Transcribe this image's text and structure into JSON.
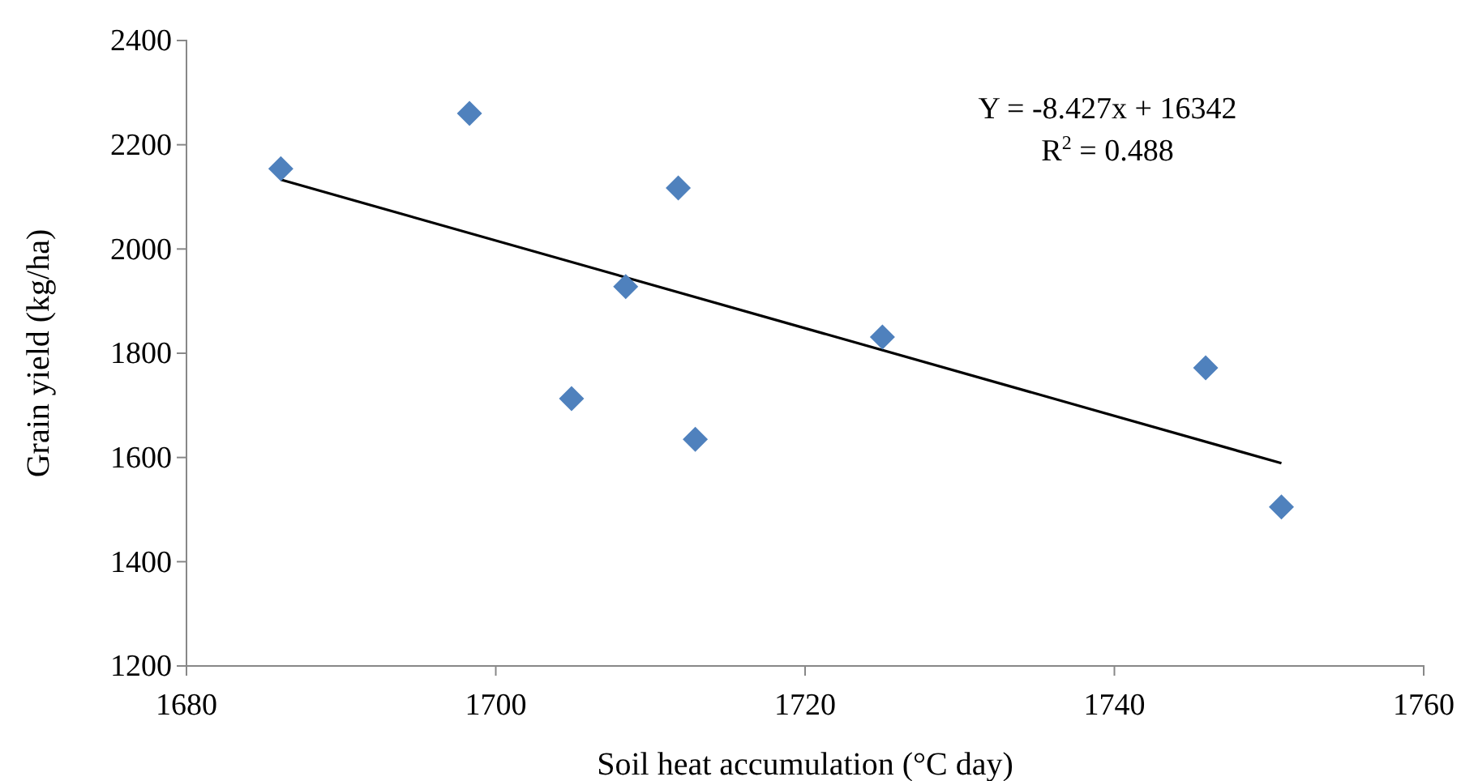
{
  "chart_data": {
    "type": "scatter",
    "xlabel": "Soil heat accumulation (°C day)",
    "ylabel": "Grain yield (kg/ha)",
    "xlim": [
      1680,
      1760
    ],
    "xticks": [
      1680,
      1700,
      1720,
      1740,
      1760
    ],
    "ylim": [
      1200,
      2400
    ],
    "yticks": [
      1200,
      1400,
      1600,
      1800,
      2000,
      2200,
      2400
    ],
    "grid": false,
    "series": [
      {
        "marker": "diamond",
        "color": "#4f81bd",
        "x": [
          1686.1,
          1698.3,
          1711.8,
          1708.4,
          1704.9,
          1712.9,
          1725.0,
          1745.9,
          1750.8
        ],
        "values": [
          2154,
          2260,
          2117,
          1928,
          1713,
          1635,
          1831,
          1772,
          1505
        ]
      },
      {
        "type": "line",
        "color": "#000000",
        "x": [
          1686.1,
          1750.8
        ],
        "values": [
          2133,
          1589
        ]
      }
    ],
    "annotations": [
      "Y = -8.427x + 16342",
      "R$^{2}$ = 0.488"
    ]
  }
}
